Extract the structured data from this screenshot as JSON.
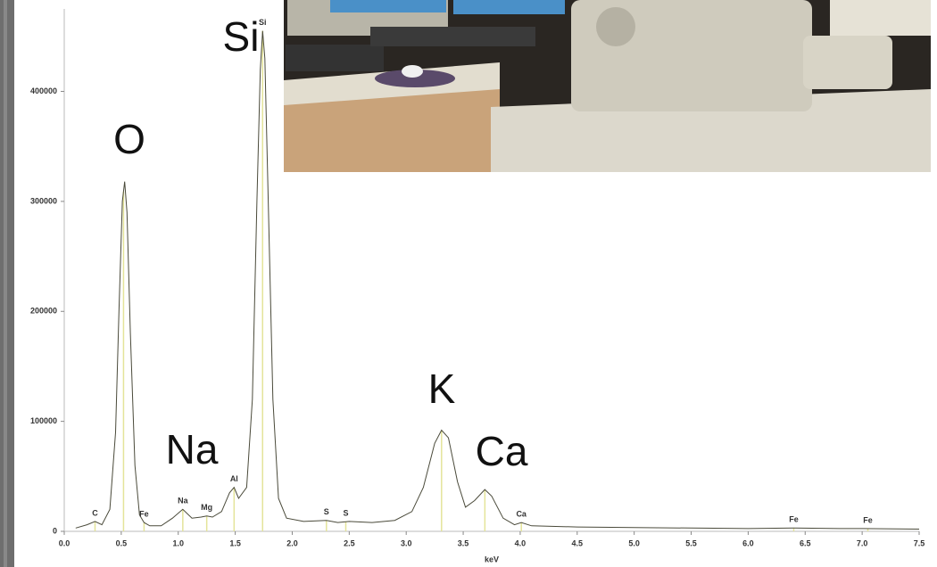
{
  "chart_data": {
    "type": "line",
    "x_label": "keV",
    "x": [
      0.1,
      0.2,
      0.27,
      0.33,
      0.4,
      0.45,
      0.48,
      0.51,
      0.53,
      0.55,
      0.58,
      0.62,
      0.66,
      0.7,
      0.75,
      0.85,
      0.95,
      1.04,
      1.12,
      1.2,
      1.25,
      1.3,
      1.38,
      1.45,
      1.49,
      1.53,
      1.6,
      1.65,
      1.69,
      1.72,
      1.74,
      1.76,
      1.79,
      1.83,
      1.88,
      1.95,
      2.1,
      2.3,
      2.4,
      2.5,
      2.7,
      2.9,
      3.05,
      3.15,
      3.25,
      3.31,
      3.37,
      3.45,
      3.52,
      3.6,
      3.69,
      3.75,
      3.85,
      3.95,
      4.01,
      4.1,
      4.5,
      5.0,
      5.5,
      6.0,
      6.4,
      6.8,
      7.0,
      7.5
    ],
    "series": [
      {
        "color": "#4a4a3a",
        "values": [
          3000,
          6000,
          9000,
          6000,
          20000,
          90000,
          200000,
          300000,
          318000,
          290000,
          180000,
          60000,
          15000,
          8000,
          5000,
          5000,
          12000,
          20000,
          12000,
          13000,
          14000,
          13000,
          18000,
          35000,
          40000,
          30000,
          40000,
          120000,
          300000,
          420000,
          455000,
          430000,
          300000,
          120000,
          30000,
          12000,
          9000,
          10000,
          8000,
          9000,
          8000,
          10000,
          18000,
          40000,
          80000,
          92000,
          85000,
          45000,
          22000,
          28000,
          38000,
          32000,
          12000,
          6000,
          8000,
          5000,
          4000,
          3500,
          3000,
          2500,
          3000,
          2500,
          2500,
          2000
        ]
      }
    ],
    "xlim": [
      0,
      7.5
    ],
    "xticks": [
      {
        "value": 0,
        "label": "0.0"
      },
      {
        "value": 0.5,
        "label": "0.5"
      },
      {
        "value": 1,
        "label": "1.0"
      },
      {
        "value": 1.5,
        "label": "1.5"
      },
      {
        "value": 2,
        "label": "2.0"
      },
      {
        "value": 2.5,
        "label": "2.5"
      },
      {
        "value": 3,
        "label": "3.0"
      },
      {
        "value": 3.5,
        "label": "3.5"
      },
      {
        "value": 4,
        "label": "4.0"
      },
      {
        "value": 4.5,
        "label": "4.5"
      },
      {
        "value": 5,
        "label": "5.0"
      },
      {
        "value": 5.5,
        "label": "5.5"
      },
      {
        "value": 6,
        "label": "6.0"
      },
      {
        "value": 6.5,
        "label": "6.5"
      },
      {
        "value": 7,
        "label": "7.0"
      },
      {
        "value": 7.5,
        "label": "7.5"
      }
    ],
    "ylim": [
      0,
      475000
    ],
    "yticks": [
      0,
      100000,
      200000,
      300000,
      400000
    ],
    "marker_color": "#e4e49a",
    "peak_markers": [
      0.27,
      0.52,
      0.7,
      1.04,
      1.25,
      1.49,
      1.74,
      2.3,
      2.47,
      3.31,
      3.69,
      4.01,
      6.4,
      7.05
    ],
    "peak_labels": [
      {
        "text": "C",
        "x": 0.27
      },
      {
        "text": "Fe",
        "x": 0.7
      },
      {
        "text": "Na",
        "x": 1.04
      },
      {
        "text": "Mg",
        "x": 1.25
      },
      {
        "text": "Al",
        "x": 1.49
      },
      {
        "text": "Si",
        "x": 1.74
      },
      {
        "text": "S",
        "x": 2.3
      },
      {
        "text": "S",
        "x": 2.47
      },
      {
        "text": "Ca",
        "x": 4.01
      },
      {
        "text": "Fe",
        "x": 6.4
      },
      {
        "text": "Fe",
        "x": 7.05
      }
    ],
    "annotations": [
      "Si",
      "O",
      "Na",
      "K",
      "Ca"
    ]
  }
}
